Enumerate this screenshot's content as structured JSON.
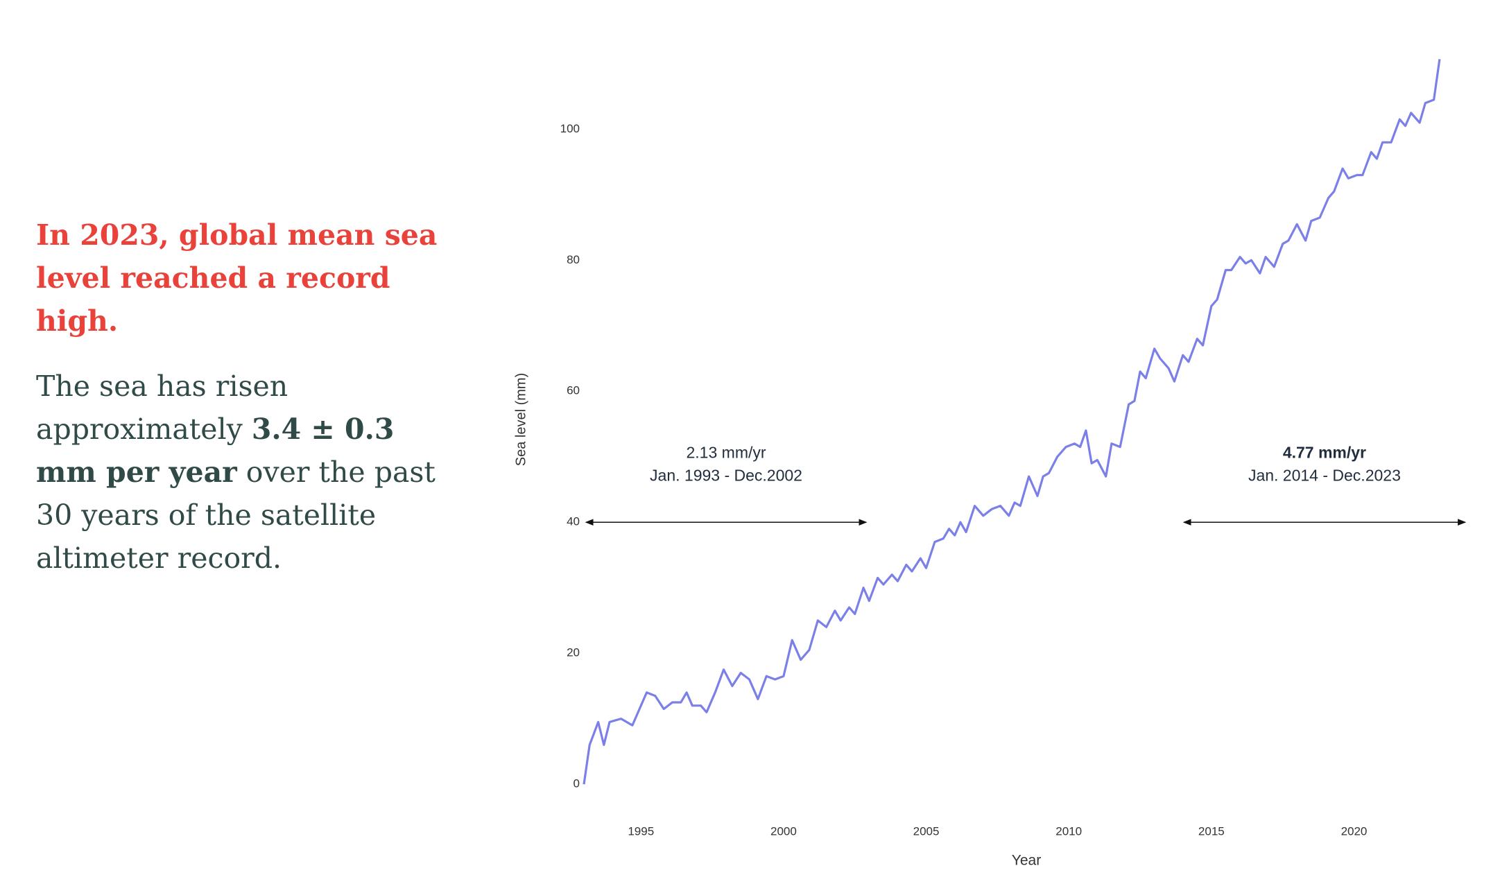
{
  "headline": "In 2023, global mean sea level reached a record high.",
  "body": [
    {
      "text": "The sea has risen approximately ",
      "bold": false
    },
    {
      "text": "3.4 ± 0.3 mm per year",
      "bold": true
    },
    {
      "text": " over the past 30 years of the satellite altimeter record.",
      "bold": false
    }
  ],
  "chart_data": {
    "type": "line",
    "x_label": "Year",
    "y_label": "Sea level (mm)",
    "xlim": [
      1993,
      2024
    ],
    "ylim": [
      -2,
      112
    ],
    "xticks": [
      1995,
      2000,
      2005,
      2010,
      2015,
      2020
    ],
    "yticks": [
      0,
      20,
      40,
      60,
      80,
      100
    ],
    "grid": false,
    "series": [
      {
        "name": "Sea level",
        "color": "#7b7fe8",
        "x": [
          1993.0,
          1993.2,
          1993.5,
          1993.7,
          1993.9,
          1994.3,
          1994.7,
          1994.9,
          1995.2,
          1995.5,
          1995.8,
          1996.1,
          1996.4,
          1996.6,
          1996.8,
          1997.1,
          1997.3,
          1997.6,
          1997.9,
          1998.2,
          1998.5,
          1998.8,
          1999.1,
          1999.4,
          1999.7,
          2000.0,
          2000.3,
          2000.6,
          2000.9,
          2001.2,
          2001.5,
          2001.8,
          2002.0,
          2002.3,
          2002.5,
          2002.8,
          2003.0,
          2003.3,
          2003.5,
          2003.8,
          2004.0,
          2004.3,
          2004.5,
          2004.8,
          2005.0,
          2005.3,
          2005.6,
          2005.8,
          2006.0,
          2006.2,
          2006.4,
          2006.7,
          2007.0,
          2007.3,
          2007.6,
          2007.9,
          2008.1,
          2008.3,
          2008.6,
          2008.9,
          2009.1,
          2009.3,
          2009.6,
          2009.9,
          2010.2,
          2010.4,
          2010.6,
          2010.8,
          2011.0,
          2011.3,
          2011.5,
          2011.8,
          2012.1,
          2012.3,
          2012.5,
          2012.7,
          2013.0,
          2013.2,
          2013.5,
          2013.7,
          2014.0,
          2014.2,
          2014.5,
          2014.7,
          2015.0,
          2015.2,
          2015.5,
          2015.7,
          2016.0,
          2016.2,
          2016.4,
          2016.7,
          2016.9,
          2017.2,
          2017.5,
          2017.7,
          2018.0,
          2018.3,
          2018.5,
          2018.8,
          2019.1,
          2019.3,
          2019.6,
          2019.8,
          2020.1,
          2020.3,
          2020.6,
          2020.8,
          2021.0,
          2021.3,
          2021.6,
          2021.8,
          2022.0,
          2022.3,
          2022.5,
          2022.8,
          2023.0
        ],
        "values": [
          0,
          6,
          9.5,
          6,
          9.5,
          10,
          9,
          11,
          14,
          13.5,
          11.5,
          12.5,
          12.5,
          14,
          12,
          12,
          11,
          14,
          17.5,
          15,
          17,
          16,
          13,
          16.5,
          16,
          16.5,
          22,
          19,
          20.5,
          25,
          24,
          26.5,
          25,
          27,
          26,
          30,
          28,
          31.5,
          30.5,
          32,
          31,
          33.5,
          32.5,
          34.5,
          33,
          37,
          37.5,
          39,
          38,
          40,
          38.5,
          42.5,
          41,
          42,
          42.5,
          41,
          43,
          42.5,
          47,
          44,
          47,
          47.5,
          50,
          51.5,
          52,
          51.5,
          54,
          49,
          49.5,
          47,
          52,
          51.5,
          58,
          58.5,
          63,
          62,
          66.5,
          65,
          63.5,
          61.5,
          65.5,
          64.5,
          68,
          67,
          73,
          74,
          78.5,
          78.5,
          80.5,
          79.5,
          80,
          78,
          80.5,
          79,
          82.5,
          83,
          85.5,
          83,
          86,
          86.5,
          89.5,
          90.5,
          94,
          92.5,
          93,
          93,
          96.5,
          95.5,
          98,
          98,
          101.5,
          100.5,
          102.5,
          101,
          104,
          104.5,
          110.7
        ]
      }
    ],
    "annotations": [
      {
        "text": "2.13 mm/yr",
        "subtext": "Jan. 1993 - Dec.2002",
        "bold": false,
        "x0": 1993.07,
        "x1": 2002.9,
        "y": 40
      },
      {
        "text": "4.77 mm/yr",
        "subtext": "Jan. 2014 - Dec.2023",
        "bold": true,
        "x0": 2014.03,
        "x1": 2023.9,
        "y": 40
      }
    ]
  }
}
